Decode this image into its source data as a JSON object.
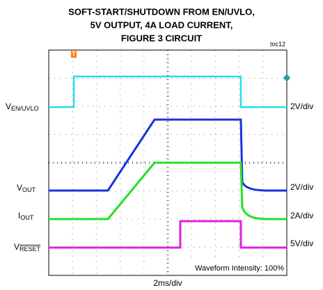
{
  "title": [
    "SOFT-START/SHUTDOWN FROM EN/UVLO,",
    "5V OUTPUT, 4A LOAD CURRENT,",
    "FIGURE 3 CIRCUIT"
  ],
  "figure_id": "toc12",
  "channels": [
    {
      "symbol": "V",
      "subscript": "EN/UVLO",
      "scale": "2V/div"
    },
    {
      "symbol": "V",
      "subscript": "OUT",
      "scale": "2V/div"
    },
    {
      "symbol": "I",
      "subscript": "OUT",
      "scale": "2A/div"
    },
    {
      "symbol": "V",
      "subscript": "RESET",
      "scale": "5V/div"
    }
  ],
  "timebase": "2ms/div",
  "intensity": "Waveform Intensity: 100%"
}
